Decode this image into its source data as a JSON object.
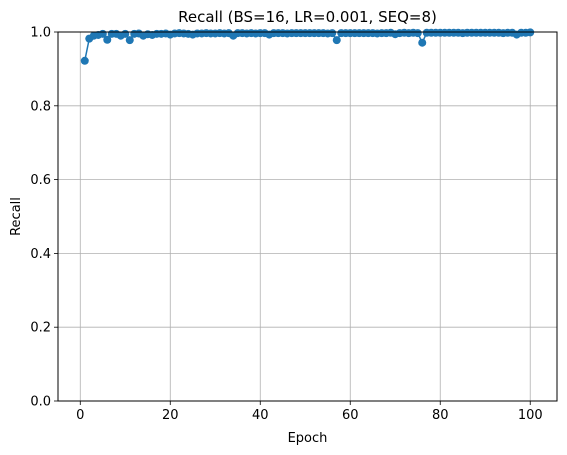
{
  "chart_data": {
    "type": "line",
    "title": "Recall (BS=16, LR=0.001, SEQ=8)",
    "xlabel": "Epoch",
    "ylabel": "Recall",
    "xlim": [
      -4.95,
      105.95
    ],
    "ylim": [
      0,
      1.0
    ],
    "xticks": [
      0,
      20,
      40,
      60,
      80,
      100
    ],
    "yticks": [
      0.0,
      0.2,
      0.4,
      0.6,
      0.8,
      1.0
    ],
    "xtick_labels": [
      "0",
      "20",
      "40",
      "60",
      "80",
      "100"
    ],
    "ytick_labels": [
      "0.0",
      "0.2",
      "0.4",
      "0.6",
      "0.8",
      "1.0"
    ],
    "grid": true,
    "series": [
      {
        "color": "#1f77b4",
        "marker": "circle",
        "x": [
          1,
          2,
          3,
          4,
          5,
          6,
          7,
          8,
          9,
          10,
          11,
          12,
          13,
          14,
          15,
          16,
          17,
          18,
          19,
          20,
          21,
          22,
          23,
          24,
          25,
          26,
          27,
          28,
          29,
          30,
          31,
          32,
          33,
          34,
          35,
          36,
          37,
          38,
          39,
          40,
          41,
          42,
          43,
          44,
          45,
          46,
          47,
          48,
          49,
          50,
          51,
          52,
          53,
          54,
          55,
          56,
          57,
          58,
          59,
          60,
          61,
          62,
          63,
          64,
          65,
          66,
          67,
          68,
          69,
          70,
          71,
          72,
          73,
          74,
          75,
          76,
          77,
          78,
          79,
          80,
          81,
          82,
          83,
          84,
          85,
          86,
          87,
          88,
          89,
          90,
          91,
          92,
          93,
          94,
          95,
          96,
          97,
          98,
          99,
          100
        ],
        "y": [
          0.922,
          0.982,
          0.99,
          0.992,
          0.995,
          0.979,
          0.995,
          0.995,
          0.99,
          0.995,
          0.978,
          0.995,
          0.996,
          0.99,
          0.994,
          0.992,
          0.995,
          0.995,
          0.996,
          0.993,
          0.996,
          0.997,
          0.996,
          0.995,
          0.993,
          0.996,
          0.996,
          0.997,
          0.996,
          0.996,
          0.997,
          0.996,
          0.997,
          0.99,
          0.997,
          0.997,
          0.996,
          0.997,
          0.996,
          0.997,
          0.997,
          0.993,
          0.997,
          0.997,
          0.997,
          0.996,
          0.997,
          0.997,
          0.997,
          0.997,
          0.997,
          0.997,
          0.997,
          0.997,
          0.996,
          0.997,
          0.978,
          0.997,
          0.997,
          0.997,
          0.997,
          0.997,
          0.997,
          0.997,
          0.997,
          0.996,
          0.997,
          0.997,
          0.998,
          0.994,
          0.997,
          0.998,
          0.997,
          0.998,
          0.997,
          0.971,
          0.998,
          0.998,
          0.998,
          0.998,
          0.998,
          0.998,
          0.998,
          0.998,
          0.997,
          0.998,
          0.998,
          0.998,
          0.998,
          0.998,
          0.998,
          0.998,
          0.998,
          0.997,
          0.998,
          0.998,
          0.993,
          0.998,
          0.998,
          0.999
        ]
      }
    ]
  }
}
